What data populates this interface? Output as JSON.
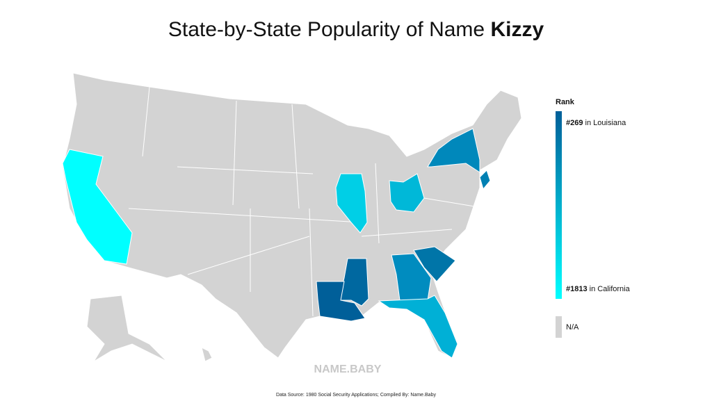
{
  "header": {
    "title_prefix": "State-by-State Popularity of Name",
    "name": "Kizzy"
  },
  "legend": {
    "title": "Rank",
    "top": {
      "rank": "#269",
      "label": "in Louisiana",
      "color": "#005f99"
    },
    "bottom": {
      "rank": "#1813",
      "label": "in California",
      "color": "#00ffff"
    },
    "na": {
      "label": "N/A",
      "color": "#d3d3d3"
    }
  },
  "watermark": "NAME.BABY",
  "footer": {
    "source": "Data Source: 1980 Social Security Applications; Compiled By: Name.Baby"
  }
}
